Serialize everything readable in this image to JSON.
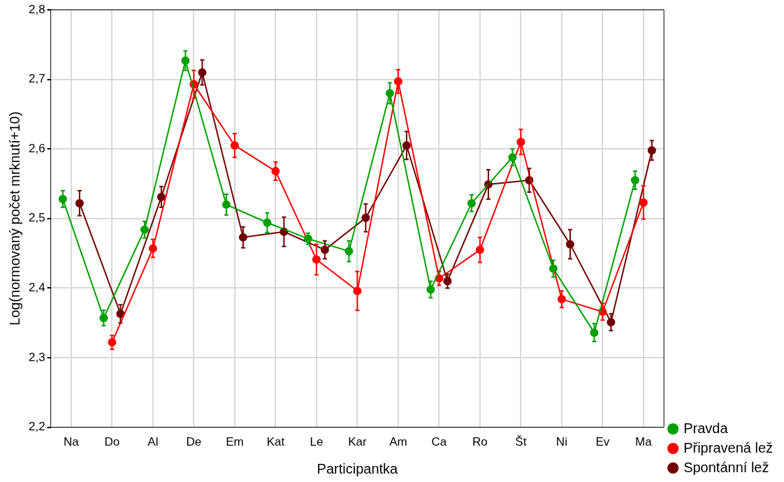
{
  "chart_data": {
    "type": "line",
    "xlabel": "Participantka",
    "ylabel": "Log(normovaný počet mrknutí+10)",
    "categories": [
      "Na",
      "Do",
      "Al",
      "De",
      "Em",
      "Kat",
      "Le",
      "Kar",
      "Am",
      "Ca",
      "Ro",
      "Št",
      "Ni",
      "Ev",
      "Ma"
    ],
    "ylim": [
      2.2,
      2.8
    ],
    "yticks": [
      {
        "value": 2.2,
        "label": "2,2"
      },
      {
        "value": 2.3,
        "label": "2,3"
      },
      {
        "value": 2.4,
        "label": "2,4"
      },
      {
        "value": 2.5,
        "label": "2,5"
      },
      {
        "value": 2.6,
        "label": "2,6"
      },
      {
        "value": 2.7,
        "label": "2,7"
      },
      {
        "value": 2.8,
        "label": "2,8"
      }
    ],
    "grid": true,
    "legend": "bottom right",
    "marker": "circle",
    "line_style": "solid",
    "series": [
      {
        "name": "Pravda",
        "color": "#00a000",
        "values": [
          2.528,
          2.357,
          2.484,
          2.727,
          2.52,
          2.494,
          2.471,
          2.453,
          2.68,
          2.398,
          2.522,
          2.588,
          2.428,
          2.336,
          2.555
        ],
        "errors": [
          0.012,
          0.011,
          0.012,
          0.014,
          0.015,
          0.014,
          0.008,
          0.015,
          0.015,
          0.012,
          0.012,
          0.012,
          0.012,
          0.013,
          0.013
        ]
      },
      {
        "name": "Připravená lež",
        "color": "#ff0000",
        "values": [
          null,
          2.322,
          2.457,
          2.693,
          2.605,
          2.568,
          2.441,
          2.396,
          2.697,
          2.414,
          2.455,
          2.61,
          2.384,
          2.366,
          2.523
        ],
        "errors": [
          null,
          0.01,
          0.013,
          0.02,
          0.017,
          0.013,
          0.022,
          0.028,
          0.017,
          0.01,
          0.018,
          0.018,
          0.012,
          0.012,
          0.024
        ]
      },
      {
        "name": "Spontánní lež",
        "color": "#700000",
        "values": [
          2.522,
          2.363,
          2.531,
          2.71,
          2.473,
          2.481,
          2.455,
          2.501,
          2.605,
          2.41,
          2.549,
          2.555,
          2.463,
          2.351,
          2.598
        ],
        "errors": [
          0.018,
          0.013,
          0.015,
          0.018,
          0.015,
          0.021,
          0.013,
          0.02,
          0.02,
          0.01,
          0.021,
          0.017,
          0.021,
          0.012,
          0.014
        ]
      }
    ]
  }
}
